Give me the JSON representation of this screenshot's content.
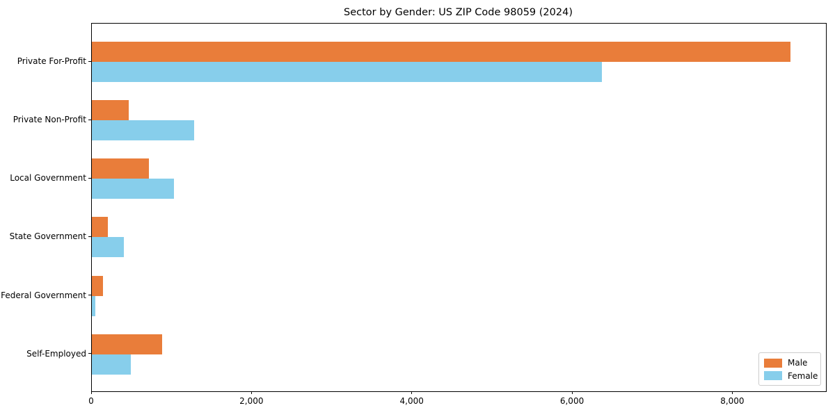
{
  "title": "Sector by Gender: US ZIP Code 98059 (2024)",
  "chart_data": {
    "type": "bar",
    "orientation": "horizontal",
    "title": "Sector by Gender: US ZIP Code 98059 (2024)",
    "categories": [
      "Private For-Profit",
      "Private Non-Profit",
      "Local Government",
      "State Government",
      "Federal Government",
      "Self-Employed"
    ],
    "series": [
      {
        "name": "Male",
        "color": "#e97d3a",
        "values": [
          8720,
          460,
          710,
          200,
          140,
          875
        ]
      },
      {
        "name": "Female",
        "color": "#87ceeb",
        "values": [
          6360,
          1275,
          1020,
          400,
          45,
          485
        ]
      }
    ],
    "xlabel": "",
    "ylabel": "",
    "xlim": [
      0,
      9160
    ],
    "xticks": [
      0,
      2000,
      4000,
      6000,
      8000
    ],
    "xtick_labels": [
      "0",
      "2,000",
      "4,000",
      "6,000",
      "8,000"
    ],
    "grid": false,
    "legend_position": "lower right",
    "legend_labels": [
      "Male",
      "Female"
    ]
  }
}
